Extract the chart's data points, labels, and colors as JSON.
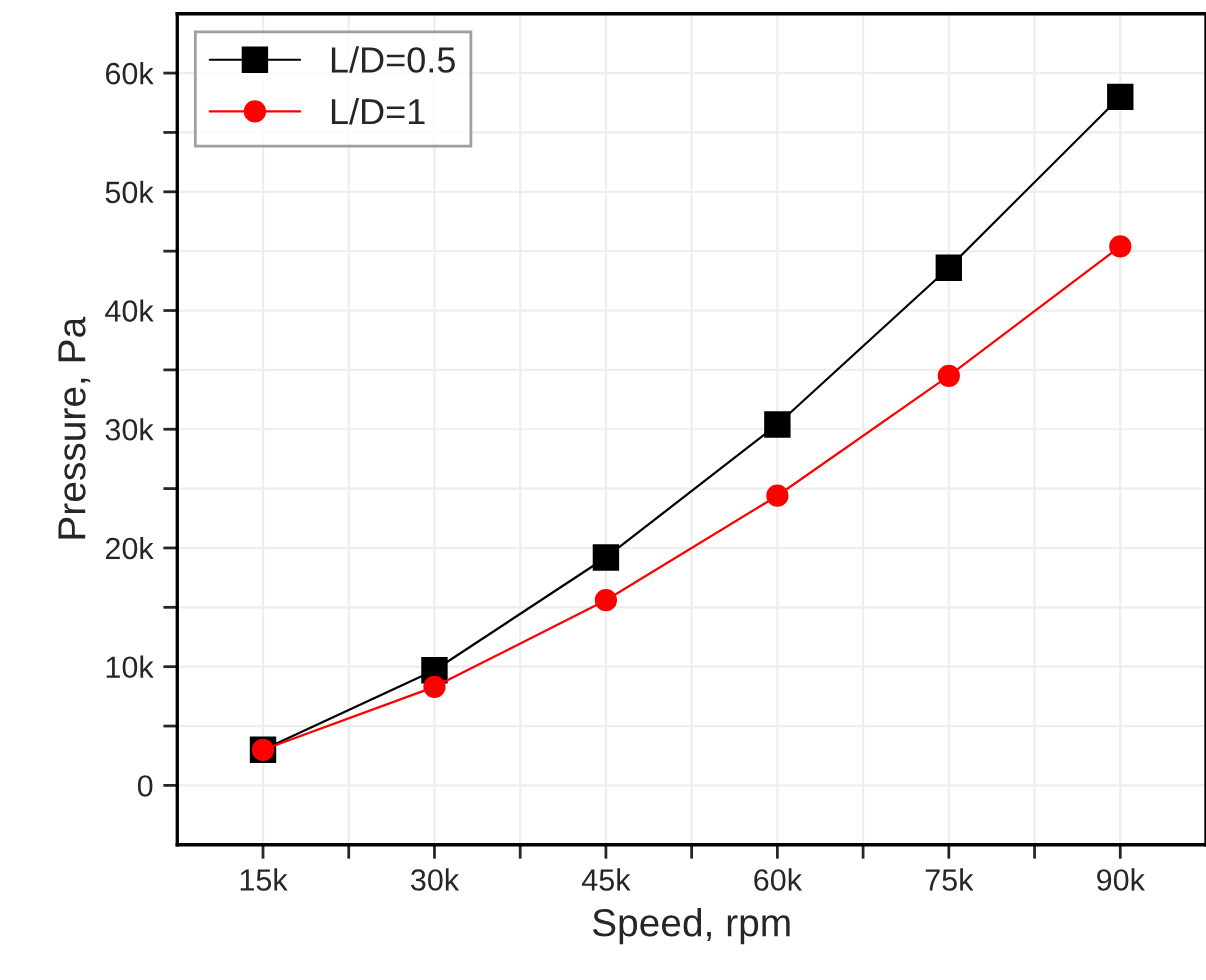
{
  "chart_data": {
    "type": "line",
    "xlabel": "Speed, rpm",
    "ylabel": "Pressure, Pa",
    "x": [
      15000,
      30000,
      45000,
      60000,
      75000,
      90000
    ],
    "series": [
      {
        "name": "L/D=0.5",
        "color": "#000000",
        "marker": "square",
        "values": [
          3000,
          9700,
          19200,
          30400,
          43600,
          58000
        ]
      },
      {
        "name": "L/D=1",
        "color": "#ff0000",
        "marker": "circle",
        "values": [
          3000,
          8300,
          15600,
          24400,
          34500,
          45400
        ]
      }
    ],
    "xlim": [
      7500,
      97500
    ],
    "ylim": [
      -5000,
      65000
    ],
    "xticks": [
      {
        "value": 15000,
        "label": "15k"
      },
      {
        "value": 22500,
        "label": null
      },
      {
        "value": 30000,
        "label": "30k"
      },
      {
        "value": 37500,
        "label": null
      },
      {
        "value": 45000,
        "label": "45k"
      },
      {
        "value": 52500,
        "label": null
      },
      {
        "value": 60000,
        "label": "60k"
      },
      {
        "value": 67500,
        "label": null
      },
      {
        "value": 75000,
        "label": "75k"
      },
      {
        "value": 82500,
        "label": null
      },
      {
        "value": 90000,
        "label": "90k"
      }
    ],
    "yticks": [
      {
        "value": 0,
        "label": "0"
      },
      {
        "value": 5000,
        "label": null
      },
      {
        "value": 10000,
        "label": "10k"
      },
      {
        "value": 15000,
        "label": null
      },
      {
        "value": 20000,
        "label": "20k"
      },
      {
        "value": 25000,
        "label": null
      },
      {
        "value": 30000,
        "label": "30k"
      },
      {
        "value": 35000,
        "label": null
      },
      {
        "value": 40000,
        "label": "40k"
      },
      {
        "value": 45000,
        "label": null
      },
      {
        "value": 50000,
        "label": "50k"
      },
      {
        "value": 55000,
        "label": null
      },
      {
        "value": 60000,
        "label": "60k"
      }
    ],
    "grid": true,
    "legend": "top left",
    "line_style": "solid"
  }
}
